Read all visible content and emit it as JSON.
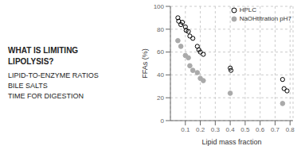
{
  "chart_data": {
    "type": "scatter",
    "xlabel": "Lipid mass fraction",
    "ylabel": "FFAs (%)",
    "xlim": [
      0.0,
      0.82
    ],
    "xticks": [
      0.1,
      0.2,
      0.3,
      0.4,
      0.5,
      0.6,
      0.7,
      0.8
    ],
    "ylim": [
      0,
      100
    ],
    "yticks": [
      0,
      20,
      40,
      60,
      80,
      100
    ],
    "grid": true,
    "legend": "upper right",
    "annotations": [
      "WHAT IS LIMITING",
      "LIPOLYSIS?",
      "LIPID-TO-ENZYME",
      "RATIOS",
      "BILE SALTS",
      "TIME FOR DIGESTION"
    ],
    "series": [
      {
        "name": "HPLC",
        "color": "black",
        "marker": "open_circle",
        "x": [
          0.05,
          0.055,
          0.07,
          0.08,
          0.1,
          0.105,
          0.12,
          0.13,
          0.15,
          0.18,
          0.19,
          0.2,
          0.22,
          0.4,
          0.405,
          0.75,
          0.76,
          0.78
        ],
        "values": [
          90,
          87,
          84,
          86,
          82,
          79,
          78,
          74,
          72,
          65,
          62,
          60,
          58,
          46,
          44,
          36,
          28,
          26
        ]
      },
      {
        "name": "NaOHtitration pH7",
        "color": "#aaaaaa",
        "marker": "circle",
        "x": [
          0.05,
          0.07,
          0.1,
          0.12,
          0.13,
          0.15,
          0.18,
          0.2,
          0.22,
          0.4,
          0.75
        ],
        "values": [
          70,
          65,
          57,
          55,
          48,
          44,
          42,
          37,
          35,
          24,
          15
        ]
      }
    ]
  }
}
